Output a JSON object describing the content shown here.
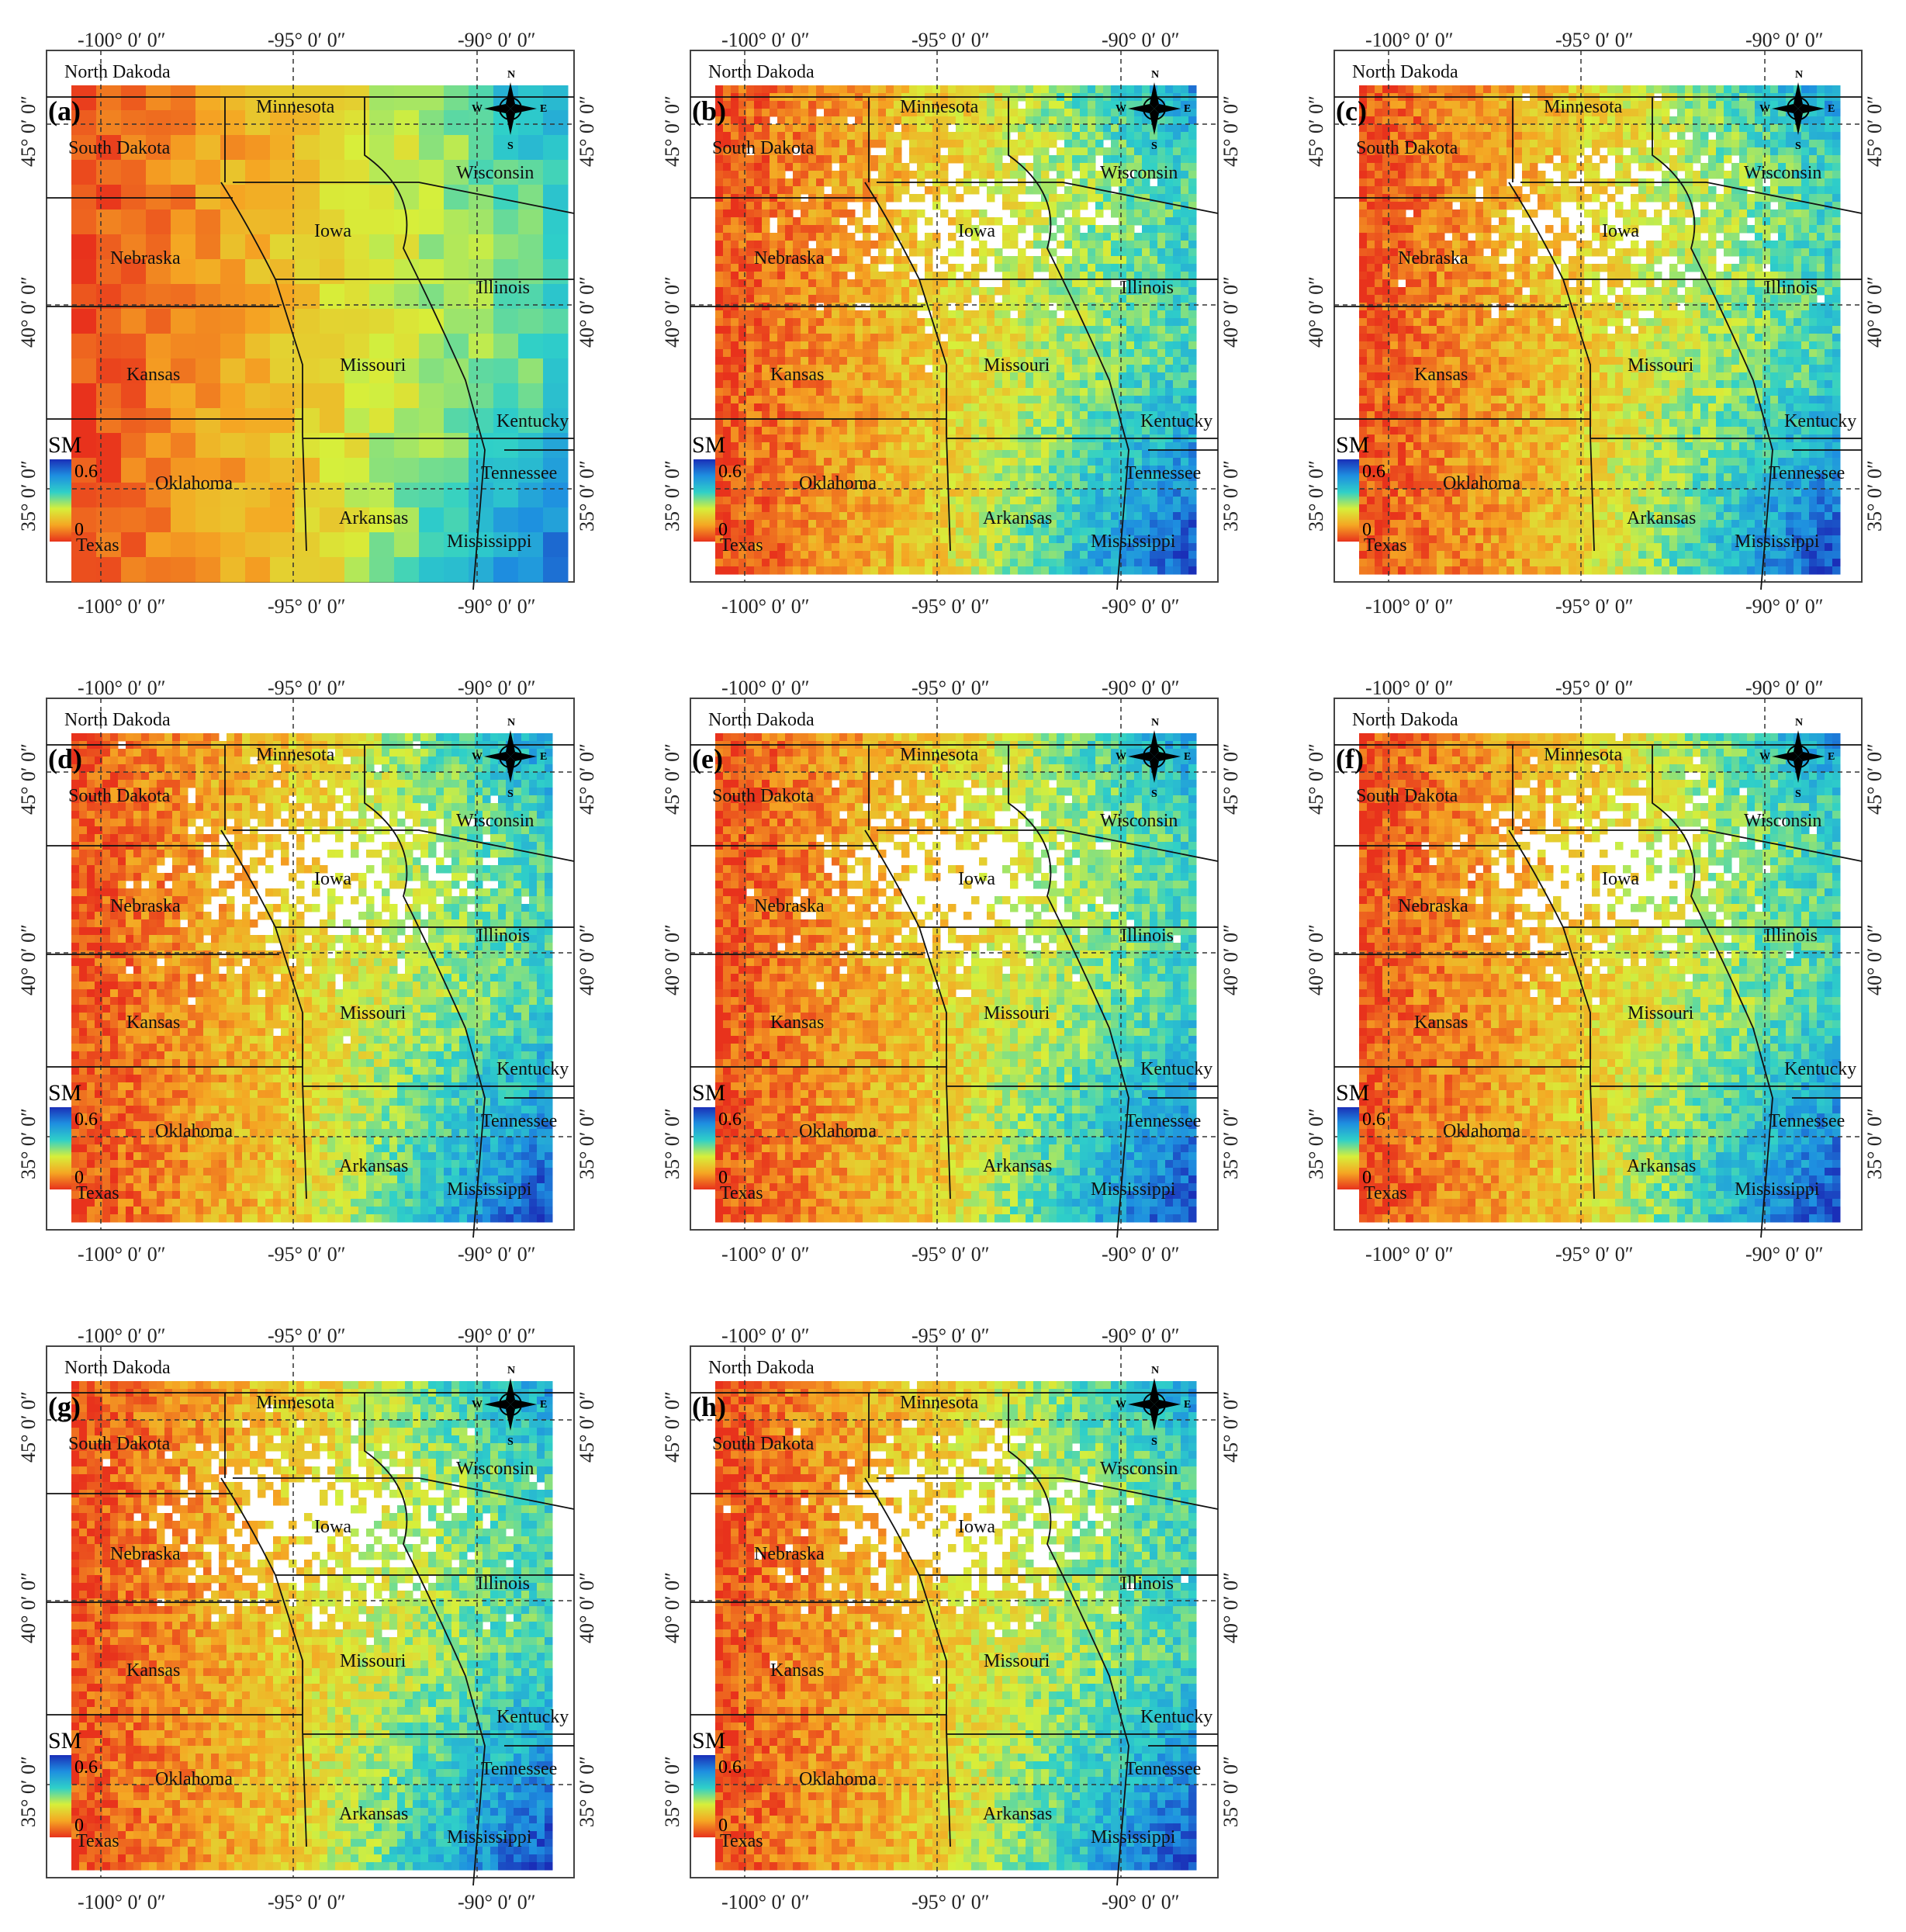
{
  "figure": {
    "axis_labels": {
      "top": [
        "-100° 0′ 0″",
        "-95° 0′ 0″",
        "-90° 0′ 0″"
      ],
      "bottom": [
        "-100° 0′ 0″",
        "-95° 0′ 0″",
        "-90° 0′ 0″"
      ],
      "left": [
        "45° 0′ 0″",
        "40° 0′ 0″",
        "35° 0′ 0″"
      ],
      "right": [
        "45° 0′ 0″",
        "40° 0′ 0″",
        "35° 0′ 0″"
      ]
    },
    "states": [
      "North Dakoda",
      "Minnesota",
      "South Dakota",
      "Wisconsin",
      "Iowa",
      "Nebraska",
      "Illinois",
      "Kansas",
      "Missouri",
      "Kentucky",
      "Oklahoma",
      "Tennessee",
      "Arkansas",
      "Texas",
      "Mississippi"
    ],
    "legend": {
      "title": "SM",
      "max_label": "0.6",
      "min_label": "0",
      "colors": [
        "#1a2fb8",
        "#1e8fe0",
        "#2fd0c8",
        "#d7ef3a",
        "#f5a623",
        "#e8321c"
      ]
    },
    "compass": {
      "n": "N",
      "s": "S",
      "e": "E",
      "w": "W"
    },
    "panels": [
      {
        "label": "(a)",
        "style": "coarse"
      },
      {
        "label": "(b)",
        "style": "fine"
      },
      {
        "label": "(c)",
        "style": "fine"
      },
      {
        "label": "(d)",
        "style": "fine"
      },
      {
        "label": "(e)",
        "style": "fine"
      },
      {
        "label": "(f)",
        "style": "fine"
      },
      {
        "label": "(g)",
        "style": "fine"
      },
      {
        "label": "(h)",
        "style": "fine"
      }
    ]
  }
}
